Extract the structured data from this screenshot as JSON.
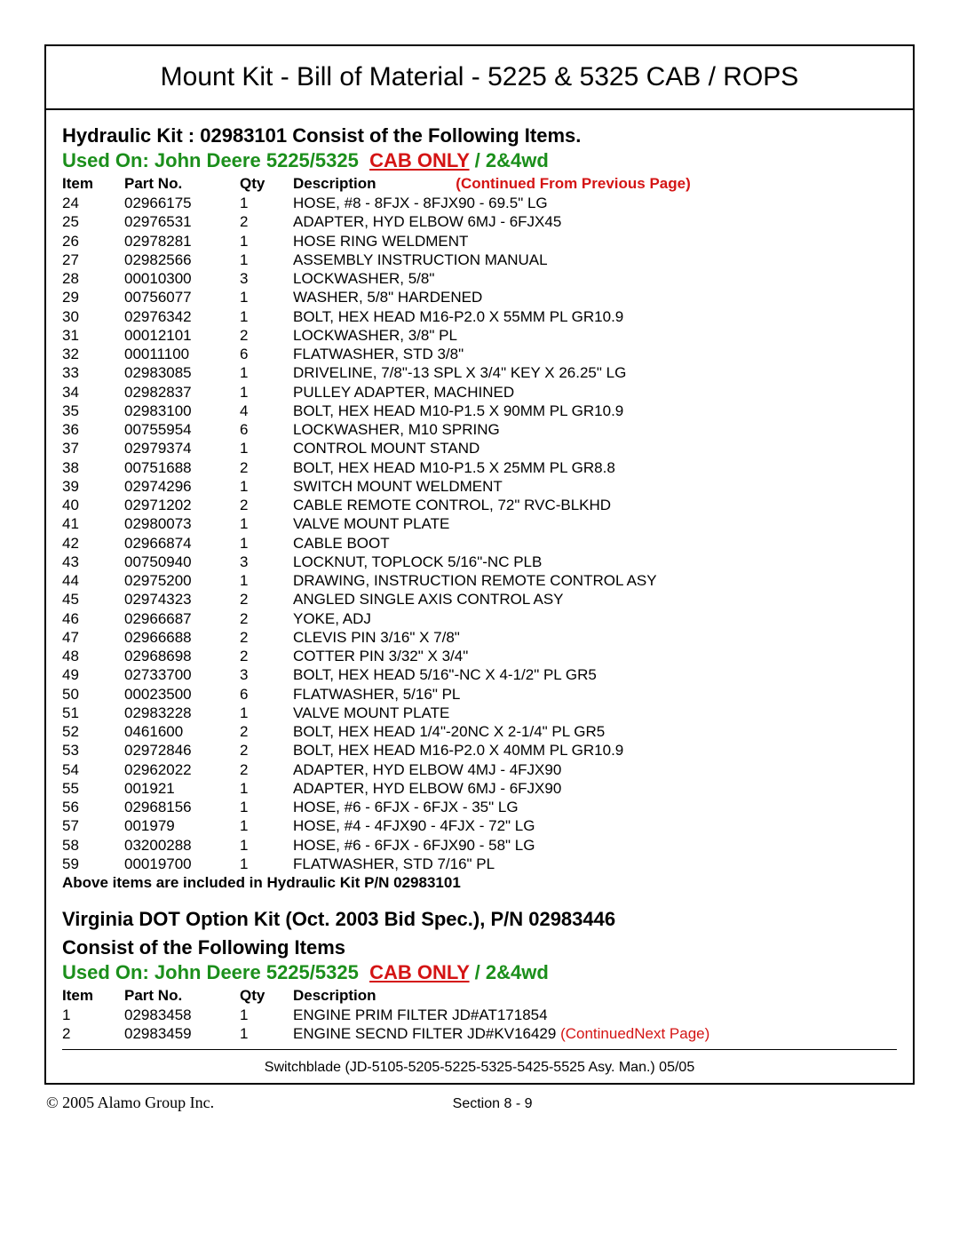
{
  "title": "Mount Kit - Bill of Material - 5225 & 5325 CAB / ROPS",
  "section1": {
    "heading": "Hydraulic Kit : 02983101 Consist of the Following Items.",
    "used_on_prefix": "Used On: John Deere 5225/5325",
    "used_on_red": "CAB ONLY",
    "used_on_suffix": " / 2&4wd",
    "headers": {
      "item": "Item",
      "part": "Part No.",
      "qty": "Qty",
      "desc": "Description"
    },
    "continued_prev": "(Continued From Previous Page)",
    "rows": [
      {
        "item": "24",
        "part": "02966175",
        "qty": "1",
        "desc": "HOSE, #8 - 8FJX - 8FJX90 - 69.5\" LG"
      },
      {
        "item": "25",
        "part": "02976531",
        "qty": "2",
        "desc": "ADAPTER, HYD ELBOW 6MJ - 6FJX45"
      },
      {
        "item": "26",
        "part": "02978281",
        "qty": "1",
        "desc": "HOSE RING WELDMENT"
      },
      {
        "item": "27",
        "part": "02982566",
        "qty": "1",
        "desc": "ASSEMBLY INSTRUCTION MANUAL"
      },
      {
        "item": "28",
        "part": "00010300",
        "qty": "3",
        "desc": "LOCKWASHER, 5/8\""
      },
      {
        "item": "29",
        "part": "00756077",
        "qty": "1",
        "desc": "WASHER, 5/8\" HARDENED"
      },
      {
        "item": "30",
        "part": "02976342",
        "qty": "1",
        "desc": "BOLT, HEX HEAD M16-P2.0 X 55MM PL GR10.9"
      },
      {
        "item": "31",
        "part": "00012101",
        "qty": "2",
        "desc": "LOCKWASHER, 3/8\" PL"
      },
      {
        "item": "32",
        "part": "00011100",
        "qty": "6",
        "desc": "FLATWASHER, STD 3/8\""
      },
      {
        "item": "33",
        "part": "02983085",
        "qty": "1",
        "desc": "DRIVELINE, 7/8\"-13 SPL X 3/4\" KEY X 26.25\" LG"
      },
      {
        "item": "34",
        "part": "02982837",
        "qty": "1",
        "desc": "PULLEY ADAPTER, MACHINED"
      },
      {
        "item": "35",
        "part": "02983100",
        "qty": "4",
        "desc": "BOLT, HEX HEAD M10-P1.5 X 90MM PL GR10.9"
      },
      {
        "item": "36",
        "part": "00755954",
        "qty": "6",
        "desc": "LOCKWASHER, M10 SPRING"
      },
      {
        "item": "37",
        "part": "02979374",
        "qty": "1",
        "desc": "CONTROL MOUNT STAND"
      },
      {
        "item": "38",
        "part": "00751688",
        "qty": "2",
        "desc": "BOLT, HEX HEAD M10-P1.5 X 25MM PL  GR8.8"
      },
      {
        "item": "39",
        "part": "02974296",
        "qty": "1",
        "desc": "SWITCH MOUNT WELDMENT"
      },
      {
        "item": "40",
        "part": "02971202",
        "qty": "2",
        "desc": "CABLE REMOTE CONTROL, 72\" RVC-BLKHD"
      },
      {
        "item": "41",
        "part": "02980073",
        "qty": "1",
        "desc": "VALVE MOUNT PLATE"
      },
      {
        "item": "42",
        "part": "02966874",
        "qty": "1",
        "desc": "CABLE BOOT"
      },
      {
        "item": "43",
        "part": "00750940",
        "qty": "3",
        "desc": "LOCKNUT, TOPLOCK 5/16\"-NC PLB"
      },
      {
        "item": "44",
        "part": "02975200",
        "qty": "1",
        "desc": "DRAWING, INSTRUCTION REMOTE CONTROL ASY"
      },
      {
        "item": "45",
        "part": "02974323",
        "qty": "2",
        "desc": "ANGLED SINGLE AXIS CONTROL ASY"
      },
      {
        "item": "46",
        "part": "02966687",
        "qty": "2",
        "desc": "YOKE, ADJ"
      },
      {
        "item": "47",
        "part": "02966688",
        "qty": "2",
        "desc": "CLEVIS PIN 3/16\" X 7/8\""
      },
      {
        "item": "48",
        "part": "02968698",
        "qty": "2",
        "desc": "COTTER  PIN   3/32\" X 3/4\""
      },
      {
        "item": "49",
        "part": "02733700",
        "qty": "3",
        "desc": "BOLT, HEX HEAD 5/16\"-NC X 4-1/2\" PL GR5"
      },
      {
        "item": "50",
        "part": "00023500",
        "qty": "6",
        "desc": "FLATWASHER, 5/16\" PL"
      },
      {
        "item": "51",
        "part": "02983228",
        "qty": "1",
        "desc": "VALVE MOUNT PLATE"
      },
      {
        "item": "52",
        "part": "0461600",
        "qty": "2",
        "desc": "BOLT, HEX HEAD 1/4\"-20NC X 2-1/4\" PL GR5"
      },
      {
        "item": "53",
        "part": "02972846",
        "qty": "2",
        "desc": "BOLT, HEX HEAD M16-P2.0 X 40MM PL GR10.9"
      },
      {
        "item": "54",
        "part": "02962022",
        "qty": "2",
        "desc": "ADAPTER, HYD ELBOW 4MJ - 4FJX90"
      },
      {
        "item": "55",
        "part": "001921",
        "qty": "1",
        "desc": "ADAPTER, HYD ELBOW 6MJ - 6FJX90"
      },
      {
        "item": "56",
        "part": "02968156",
        "qty": "1",
        "desc": "HOSE, #6 - 6FJX - 6FJX - 35\" LG"
      },
      {
        "item": "57",
        "part": "001979",
        "qty": "1",
        "desc": "HOSE, #4 - 4FJX90 - 4FJX - 72\" LG"
      },
      {
        "item": "58",
        "part": "03200288",
        "qty": "1",
        "desc": "HOSE, #6 - 6FJX - 6FJX90 - 58\" LG"
      },
      {
        "item": "59",
        "part": "00019700",
        "qty": "1",
        "desc": "FLATWASHER,  STD 7/16\" PL"
      }
    ],
    "footnote": "Above  items are included in Hydraulic Kit P/N 02983101"
  },
  "section2": {
    "heading_l1": "Virginia DOT Option Kit (Oct. 2003 Bid Spec.), P/N 02983446",
    "heading_l2": "Consist of the Following Items",
    "used_on_prefix": "Used On: John Deere 5225/5325",
    "used_on_red": "CAB ONLY",
    "used_on_suffix": " / 2&4wd",
    "headers": {
      "item": "Item",
      "part": "Part No.",
      "qty": "Qty",
      "desc": "Description"
    },
    "rows": [
      {
        "item": "1",
        "part": "02983458",
        "qty": "1",
        "desc": "ENGINE PRIM FILTER JD#AT171854"
      },
      {
        "item": "2",
        "part": "02983459",
        "qty": "1",
        "desc": "ENGINE SECND FILTER JD#KV16429"
      }
    ],
    "continued_next": "(ContinuedNext Page)"
  },
  "footer": {
    "line1": "Switchblade  (JD-5105-5205-5225-5325-5425-5525 Asy.  Man.) 05/05",
    "copyright": "© 2005 Alamo Group Inc.",
    "section": "Section 8  - 9"
  }
}
